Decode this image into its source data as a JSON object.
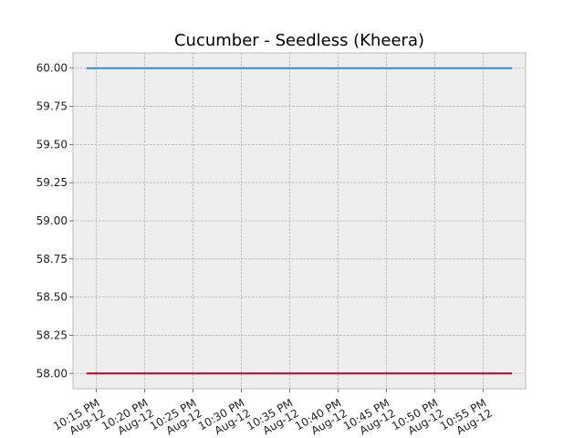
{
  "chart_data": {
    "type": "line",
    "title": "Cucumber - Seedless (Kheera)",
    "xlabel": "",
    "ylabel": "",
    "x_tick_labels": [
      [
        "10:15 PM",
        "Aug-12"
      ],
      [
        "10:20 PM",
        "Aug-12"
      ],
      [
        "10:25 PM",
        "Aug-12"
      ],
      [
        "10:30 PM",
        "Aug-12"
      ],
      [
        "10:35 PM",
        "Aug-12"
      ],
      [
        "10:40 PM",
        "Aug-12"
      ],
      [
        "10:45 PM",
        "Aug-12"
      ],
      [
        "10:50 PM",
        "Aug-12"
      ],
      [
        "10:55 PM",
        "Aug-12"
      ]
    ],
    "x_ticks": [
      "22:15",
      "22:20",
      "22:25",
      "22:30",
      "22:35",
      "22:40",
      "22:45",
      "22:50",
      "22:55"
    ],
    "y_ticks": [
      "58.00",
      "58.25",
      "58.50",
      "58.75",
      "59.00",
      "59.25",
      "59.50",
      "59.75",
      "60.00"
    ],
    "xlim": [
      "22:12:36",
      "22:59:24"
    ],
    "ylim": [
      57.9,
      60.1
    ],
    "grid": true,
    "background": "#eeeeee",
    "series": [
      {
        "color": "#348abd",
        "x": [
          "22:14",
          "22:58"
        ],
        "values": [
          60.0,
          60.0
        ]
      },
      {
        "color": "#a60628",
        "x": [
          "22:14",
          "22:58"
        ],
        "values": [
          58.0,
          58.0
        ]
      }
    ]
  }
}
